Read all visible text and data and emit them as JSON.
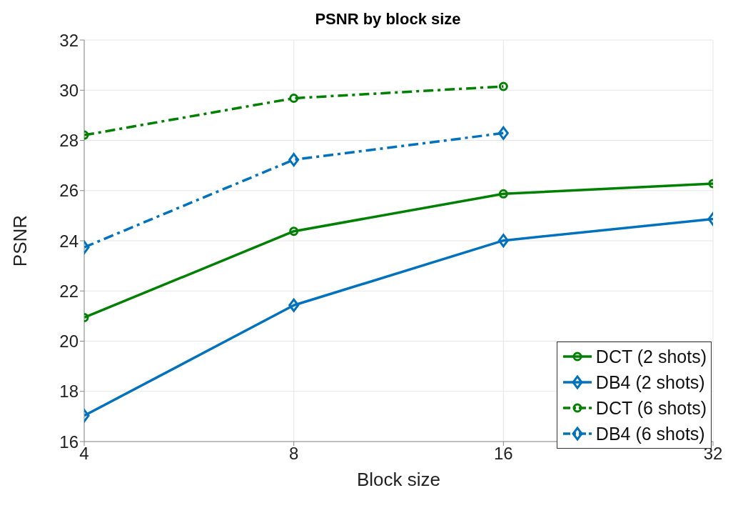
{
  "chart_data": {
    "type": "line",
    "title": "PSNR by block size",
    "xlabel": "Block size",
    "ylabel": "PSNR",
    "log": "x",
    "xlim": [
      4,
      32
    ],
    "xticks": [
      4,
      8,
      16,
      32
    ],
    "ylim": [
      16,
      32
    ],
    "yticks": [
      16,
      18,
      20,
      22,
      24,
      26,
      28,
      30,
      32
    ],
    "grid": true,
    "legend": "bottom right",
    "series": [
      {
        "name": "DCT (2 shots)",
        "color": "#008000",
        "marker": "circle",
        "line_style": "solid",
        "x": [
          4,
          8,
          16,
          32
        ],
        "values": [
          20.94,
          24.38,
          25.87,
          26.28
        ]
      },
      {
        "name": "DB4 (2 shots)",
        "color": "#0072bd",
        "marker": "diamond",
        "line_style": "solid",
        "x": [
          4,
          8,
          16,
          32
        ],
        "values": [
          17.03,
          21.43,
          24.01,
          24.87
        ]
      },
      {
        "name": "DCT (6 shots)",
        "color": "#008000",
        "marker": "circle",
        "line_style": "dashdot",
        "x": [
          4,
          8,
          16
        ],
        "values": [
          28.21,
          29.68,
          30.15
        ]
      },
      {
        "name": "DB4 (6 shots)",
        "color": "#0072bd",
        "marker": "diamond",
        "line_style": "dashdot",
        "x": [
          4,
          8,
          16
        ],
        "values": [
          23.74,
          27.23,
          28.29
        ]
      }
    ]
  }
}
